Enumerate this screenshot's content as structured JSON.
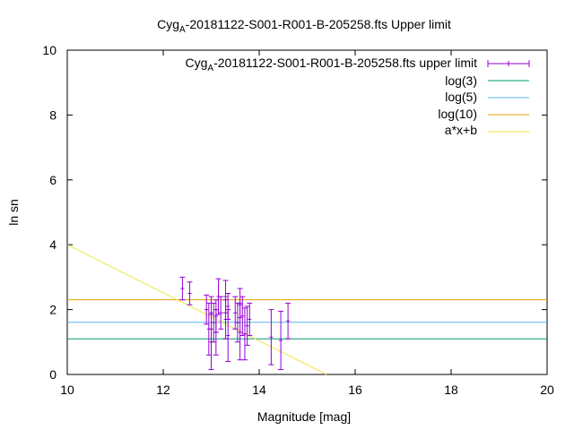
{
  "chart_data": {
    "type": "scatter",
    "title": {
      "prefix": "Cyg",
      "sub": "A",
      "suffix": "-20181122-S001-R001-B-205258.fts Upper limit"
    },
    "xlabel": "Magnitude [mag]",
    "ylabel": "ln sn",
    "xlim": [
      10,
      20
    ],
    "ylim": [
      0,
      10
    ],
    "xticks": [
      10,
      12,
      14,
      16,
      18,
      20
    ],
    "yticks": [
      0,
      2,
      4,
      6,
      8,
      10
    ],
    "legend_position": "top-right",
    "grid": false,
    "series": [
      {
        "name_prefix": "Cyg",
        "name_sub": "A",
        "name_suffix": "-20181122-S001-R001-B-205258.fts upper limit",
        "kind": "errorbars",
        "color": "#9400d3",
        "points": [
          {
            "x": 12.4,
            "y": 2.65,
            "err": 0.35
          },
          {
            "x": 12.55,
            "y": 2.5,
            "err": 0.35
          },
          {
            "x": 12.9,
            "y": 2.0,
            "err": 0.45
          },
          {
            "x": 12.95,
            "y": 1.4,
            "err": 0.8
          },
          {
            "x": 13.0,
            "y": 1.9,
            "err": 0.5
          },
          {
            "x": 13.0,
            "y": 1.0,
            "err": 0.85
          },
          {
            "x": 13.05,
            "y": 1.6,
            "err": 0.6
          },
          {
            "x": 13.1,
            "y": 1.8,
            "err": 0.5
          },
          {
            "x": 13.1,
            "y": 1.3,
            "err": 0.7
          },
          {
            "x": 13.15,
            "y": 2.4,
            "err": 0.55
          },
          {
            "x": 13.2,
            "y": 1.9,
            "err": 0.5
          },
          {
            "x": 13.3,
            "y": 2.4,
            "err": 0.5
          },
          {
            "x": 13.3,
            "y": 1.7,
            "err": 0.6
          },
          {
            "x": 13.35,
            "y": 1.2,
            "err": 0.8
          },
          {
            "x": 13.35,
            "y": 2.1,
            "err": 0.4
          },
          {
            "x": 13.5,
            "y": 1.9,
            "err": 0.5
          },
          {
            "x": 13.55,
            "y": 1.6,
            "err": 0.6
          },
          {
            "x": 13.6,
            "y": 1.3,
            "err": 0.85
          },
          {
            "x": 13.6,
            "y": 2.2,
            "err": 0.45
          },
          {
            "x": 13.65,
            "y": 1.8,
            "err": 0.6
          },
          {
            "x": 13.7,
            "y": 1.25,
            "err": 0.8
          },
          {
            "x": 13.75,
            "y": 1.5,
            "err": 0.6
          },
          {
            "x": 13.8,
            "y": 1.7,
            "err": 0.5
          },
          {
            "x": 14.25,
            "y": 1.15,
            "err": 0.85
          },
          {
            "x": 14.45,
            "y": 1.05,
            "err": 0.9
          },
          {
            "x": 14.6,
            "y": 1.65,
            "err": 0.55
          }
        ]
      },
      {
        "name": "log(3)",
        "kind": "hline",
        "y": 1.0986,
        "color": "#009e73"
      },
      {
        "name": "log(5)",
        "kind": "hline",
        "y": 1.6094,
        "color": "#56b4e9"
      },
      {
        "name": "log(10)",
        "kind": "hline",
        "y": 2.3026,
        "color": "#e69f00"
      },
      {
        "name": "a*x+b",
        "kind": "line",
        "points": [
          [
            10,
            4.0
          ],
          [
            15.4,
            0.0
          ]
        ],
        "color": "#f0e442"
      }
    ]
  }
}
